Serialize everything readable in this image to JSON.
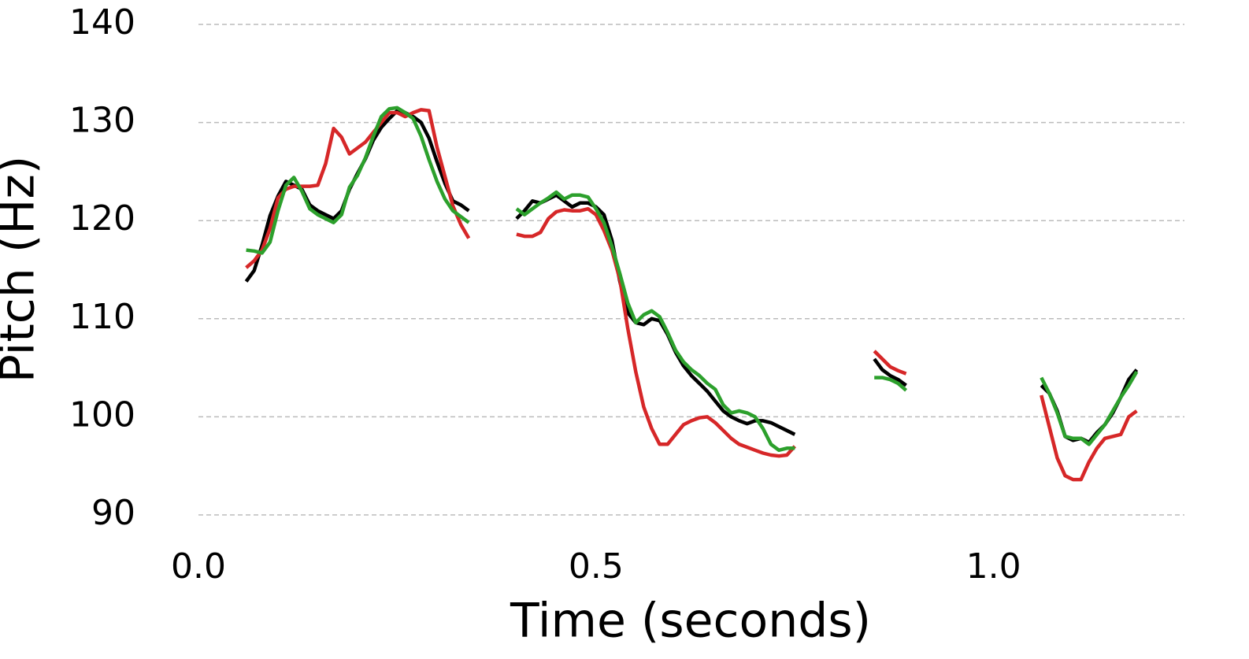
{
  "chart_data": {
    "type": "line",
    "x_label": "Time (seconds)",
    "y_label": "Pitch (Hz)",
    "x": [
      0.06,
      0.07,
      0.08,
      0.09,
      0.1,
      0.11,
      0.12,
      0.13,
      0.14,
      0.15,
      0.16,
      0.17,
      0.18,
      0.19,
      0.2,
      0.21,
      0.22,
      0.23,
      0.24,
      0.25,
      0.26,
      0.27,
      0.28,
      0.29,
      0.3,
      0.31,
      0.32,
      0.33,
      0.34,
      0.37,
      0.4,
      0.41,
      0.42,
      0.43,
      0.44,
      0.45,
      0.46,
      0.47,
      0.48,
      0.49,
      0.5,
      0.51,
      0.52,
      0.53,
      0.54,
      0.55,
      0.56,
      0.57,
      0.58,
      0.59,
      0.6,
      0.61,
      0.62,
      0.63,
      0.64,
      0.65,
      0.66,
      0.67,
      0.68,
      0.69,
      0.7,
      0.71,
      0.72,
      0.73,
      0.74,
      0.75,
      0.8,
      0.85,
      0.86,
      0.87,
      0.88,
      0.89,
      0.97,
      1.06,
      1.07,
      1.08,
      1.09,
      1.1,
      1.11,
      1.12,
      1.13,
      1.14,
      1.15,
      1.16,
      1.17,
      1.18
    ],
    "series": [
      {
        "color": "#000000",
        "values": [
          113.8,
          114.9,
          117.5,
          120.5,
          122.5,
          124.0,
          123.6,
          123.2,
          121.6,
          121.0,
          120.6,
          120.2,
          121.0,
          123.2,
          124.8,
          126.3,
          128.2,
          129.5,
          130.4,
          131.2,
          131.0,
          130.6,
          130.0,
          128.4,
          126.0,
          123.8,
          122.0,
          121.6,
          121.0,
          null,
          120.2,
          121.0,
          122.0,
          121.8,
          122.2,
          122.6,
          122.0,
          121.4,
          121.8,
          121.8,
          121.4,
          120.6,
          118.0,
          113.8,
          110.6,
          109.6,
          109.4,
          110.0,
          109.8,
          108.4,
          106.6,
          105.2,
          104.2,
          103.4,
          102.6,
          101.6,
          100.6,
          100.0,
          99.6,
          99.3,
          99.6,
          99.6,
          99.4,
          99.0,
          98.6,
          98.2,
          null,
          105.9,
          104.8,
          104.2,
          103.8,
          103.2,
          null,
          103.2,
          102.4,
          100.6,
          98.0,
          97.6,
          97.8,
          97.4,
          98.4,
          99.2,
          100.4,
          102.0,
          103.8,
          104.8
        ]
      },
      {
        "color": "#d62728",
        "values": [
          115.2,
          115.9,
          117.0,
          119.2,
          122.3,
          123.2,
          123.5,
          123.5,
          123.5,
          123.6,
          125.8,
          129.4,
          128.5,
          126.8,
          127.4,
          128.0,
          129.0,
          130.0,
          131.0,
          131.0,
          130.6,
          131.0,
          131.3,
          131.2,
          127.5,
          124.5,
          121.5,
          119.6,
          118.2,
          null,
          118.6,
          118.4,
          118.4,
          118.8,
          120.2,
          120.9,
          121.1,
          121.0,
          121.0,
          121.2,
          120.6,
          119.0,
          117.0,
          114.0,
          109.0,
          104.6,
          101.0,
          98.8,
          97.2,
          97.2,
          98.2,
          99.2,
          99.6,
          99.9,
          100.0,
          99.4,
          98.6,
          97.8,
          97.2,
          96.9,
          96.6,
          96.3,
          96.1,
          96.0,
          96.1,
          97.0,
          null,
          106.7,
          105.9,
          105.1,
          104.7,
          104.4,
          null,
          102.2,
          99.0,
          95.8,
          94.0,
          93.6,
          93.6,
          95.4,
          96.8,
          97.8,
          98.0,
          98.2,
          100.0,
          100.6
        ]
      },
      {
        "color": "#2ca02c",
        "values": [
          117.0,
          116.9,
          116.7,
          117.8,
          121.0,
          123.6,
          124.4,
          123.0,
          121.2,
          120.6,
          120.2,
          119.8,
          120.6,
          123.4,
          124.6,
          126.4,
          128.6,
          130.6,
          131.4,
          131.5,
          131.0,
          130.4,
          128.6,
          126.2,
          124.0,
          122.2,
          121.0,
          120.4,
          119.8,
          null,
          121.2,
          120.6,
          121.2,
          121.8,
          122.3,
          122.9,
          122.2,
          122.6,
          122.6,
          122.4,
          121.2,
          119.8,
          117.4,
          114.6,
          111.6,
          109.6,
          110.4,
          110.8,
          110.2,
          108.6,
          106.8,
          105.6,
          104.8,
          104.2,
          103.4,
          102.8,
          101.2,
          100.4,
          100.6,
          100.4,
          100.0,
          98.8,
          97.2,
          96.6,
          96.8,
          96.8,
          null,
          104.0,
          104.0,
          103.8,
          103.4,
          102.7,
          null,
          104.0,
          102.4,
          100.4,
          98.0,
          97.8,
          97.8,
          97.2,
          98.2,
          99.2,
          100.6,
          102.0,
          103.2,
          104.6
        ]
      }
    ],
    "xlim": [
      0,
      1.24
    ],
    "ylim": [
      90,
      140
    ],
    "xticks": [
      {
        "value": 0,
        "label": "0.0"
      },
      {
        "value": 0.5,
        "label": "0.5"
      },
      {
        "value": 1.0,
        "label": "1.0"
      }
    ],
    "yticks": [
      90,
      100,
      110,
      120,
      130,
      140
    ],
    "grid": true
  }
}
